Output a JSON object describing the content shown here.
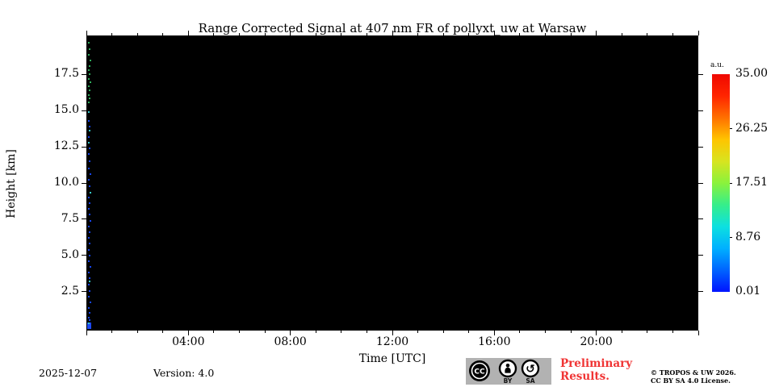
{
  "chart_data": {
    "type": "heatmap",
    "title": "Range Corrected Signal at 407 nm FR of pollyxt_uw at Warsaw",
    "xlabel": "Time [UTC]",
    "ylabel": "Height [km]",
    "x_range_hours": [
      0,
      24
    ],
    "x_major_tick_hours": [
      0,
      4,
      8,
      12,
      16,
      20,
      24
    ],
    "x_tick_labels": {
      "4": "04:00",
      "8": "08:00",
      "12": "12:00",
      "16": "16:00",
      "20": "20:00"
    },
    "x_minor_tick_every_hours": 1,
    "y_range_km": [
      -0.2,
      20.2
    ],
    "y_major_ticks_km": [
      2.5,
      5.0,
      7.5,
      10.0,
      12.5,
      15.0,
      17.5
    ],
    "y_tick_labels": [
      "2.5",
      "5.0",
      "7.5",
      "10.0",
      "12.5",
      "15.0",
      "17.5"
    ],
    "plot_background": "#000000",
    "grid": false,
    "colorbar": {
      "unit_label": "a.u.",
      "tick_labels": [
        "35.00",
        "26.25",
        "17.51",
        "8.76",
        "0.01"
      ],
      "colormap": "jet",
      "gradient_bottom_to_top": [
        "#0013ff",
        "#0064ff",
        "#00b0ff",
        "#0de0e0",
        "#36ee8a",
        "#8af23c",
        "#d8e41f",
        "#ffc400",
        "#ff7000",
        "#ff2500",
        "#ef0800"
      ]
    },
    "speckle_colors": {
      "g": "#2fae5d",
      "c": "#35c8c8",
      "b": "#1646f0"
    },
    "speckles": [
      [
        1,
        19.7,
        "g"
      ],
      [
        2,
        19.25,
        "g"
      ],
      [
        1,
        18.85,
        "g"
      ],
      [
        3,
        18.45,
        "g"
      ],
      [
        2,
        18.1,
        "g"
      ],
      [
        1,
        17.8,
        "g"
      ],
      [
        2,
        17.5,
        "g"
      ],
      [
        1,
        17.2,
        "g"
      ],
      [
        3,
        16.95,
        "g"
      ],
      [
        1,
        16.7,
        "g"
      ],
      [
        2,
        16.4,
        "g"
      ],
      [
        1,
        16.1,
        "g"
      ],
      [
        2,
        15.85,
        "g"
      ],
      [
        1,
        15.6,
        "g"
      ],
      [
        1,
        14.9,
        "c"
      ],
      [
        2,
        13.6,
        "c"
      ],
      [
        1,
        12.8,
        "c"
      ],
      [
        3,
        9.35,
        "c"
      ],
      [
        2,
        3.2,
        "c"
      ],
      [
        1,
        14.3,
        "b"
      ],
      [
        2,
        13.9,
        "b"
      ],
      [
        1,
        13.2,
        "b"
      ],
      [
        2,
        12.4,
        "b"
      ],
      [
        1,
        12.0,
        "b"
      ],
      [
        2,
        11.5,
        "b"
      ],
      [
        1,
        11.0,
        "b"
      ],
      [
        3,
        10.6,
        "b"
      ],
      [
        1,
        10.2,
        "b"
      ],
      [
        2,
        9.8,
        "b"
      ],
      [
        1,
        9.0,
        "b"
      ],
      [
        2,
        8.6,
        "b"
      ],
      [
        1,
        8.2,
        "b"
      ],
      [
        2,
        7.8,
        "b"
      ],
      [
        3,
        7.4,
        "b"
      ],
      [
        1,
        7.0,
        "b"
      ],
      [
        2,
        6.6,
        "b"
      ],
      [
        1,
        6.2,
        "b"
      ],
      [
        2,
        5.8,
        "b"
      ],
      [
        1,
        5.4,
        "b"
      ],
      [
        2,
        5.0,
        "b"
      ],
      [
        1,
        4.6,
        "b"
      ],
      [
        3,
        4.2,
        "b"
      ],
      [
        1,
        3.8,
        "b"
      ],
      [
        2,
        3.4,
        "b"
      ],
      [
        1,
        2.95,
        "b"
      ],
      [
        2,
        2.55,
        "b"
      ],
      [
        1,
        2.15,
        "b"
      ],
      [
        3,
        1.75,
        "b"
      ],
      [
        1,
        1.35,
        "b"
      ],
      [
        2,
        1.0,
        "b"
      ],
      [
        1,
        0.7,
        "b"
      ],
      [
        2,
        0.5,
        "b"
      ]
    ],
    "bottom_blob": {
      "km_top": 0.35,
      "color": "#1d49f2",
      "highlight": "#35c8c8"
    }
  },
  "footer": {
    "date": "2025-12-07",
    "version": "Version: 4.0",
    "preliminary": "Preliminary Results.",
    "preliminary_color": "#f03434",
    "copyright": [
      "© TROPOS & UW 2026.",
      "CC BY SA 4.0 License."
    ],
    "license_badge": {
      "cc_label": "CC",
      "by_label": "BY",
      "sa_label": "SA",
      "background": "#b2b2b2"
    }
  }
}
